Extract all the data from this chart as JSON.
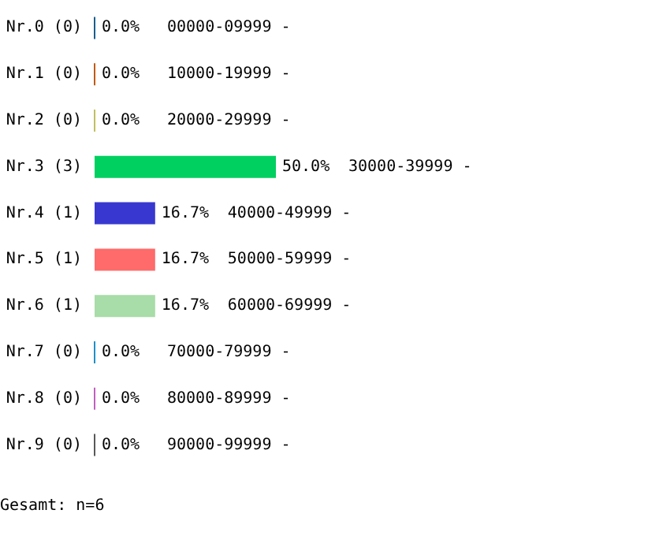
{
  "chart_data": {
    "type": "bar",
    "orientation": "horizontal",
    "categories": [
      "Nr.0 (0)",
      "Nr.1 (0)",
      "Nr.2 (0)",
      "Nr.3 (3)",
      "Nr.4 (1)",
      "Nr.5 (1)",
      "Nr.6 (1)",
      "Nr.7 (0)",
      "Nr.8 (0)",
      "Nr.9 (0)"
    ],
    "values": [
      0,
      0,
      0,
      50.0,
      16.7,
      16.7,
      16.7,
      0,
      0,
      0
    ],
    "value_labels": [
      "0.0%",
      "0.0%",
      "0.0%",
      "50.0%",
      "16.7%",
      "16.7%",
      "16.7%",
      "0.0%",
      "0.0%",
      "0.0%"
    ],
    "colors": [
      "#1a5e8c",
      "#c05a0a",
      "#c0c060",
      "#00d060",
      "#3838d0",
      "#ff6a6a",
      "#a8dca8",
      "#2090c8",
      "#c060c0",
      "#585858"
    ],
    "annotations": [
      "00000-09999 -",
      "10000-19999 -",
      "20000-29999 -",
      "30000-39999 -",
      "40000-49999 -",
      "50000-59999 -",
      "60000-69999 -",
      "70000-79999 -",
      "80000-89999 -",
      "90000-99999 -",
      "Gesamt: n=6"
    ],
    "grid": false
  }
}
